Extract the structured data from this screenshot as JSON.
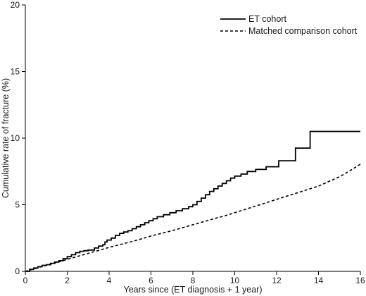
{
  "chart_data": {
    "type": "line",
    "step": true,
    "xlabel": "Years since (ET diagnosis + 1 year)",
    "ylabel": "Cumulative rate of fracture (%)",
    "xlim": [
      0,
      16
    ],
    "ylim": [
      0,
      20
    ],
    "xticks": [
      0,
      2,
      4,
      6,
      8,
      10,
      12,
      14,
      16
    ],
    "yticks": [
      0,
      5,
      10,
      15,
      20
    ],
    "grid": false,
    "legend_position": "top-right",
    "series": [
      {
        "name": "ET cohort",
        "line_style": "solid",
        "color": "#000000",
        "x": [
          0,
          0.2,
          0.4,
          0.6,
          0.8,
          1.0,
          1.2,
          1.4,
          1.6,
          1.8,
          2.0,
          2.2,
          2.4,
          2.6,
          2.8,
          3.0,
          3.3,
          3.5,
          3.7,
          3.8,
          3.9,
          4.1,
          4.3,
          4.5,
          4.7,
          4.9,
          5.1,
          5.3,
          5.5,
          5.7,
          5.9,
          6.1,
          6.3,
          6.6,
          6.9,
          7.2,
          7.5,
          7.8,
          8.0,
          8.2,
          8.4,
          8.6,
          8.8,
          9.0,
          9.2,
          9.4,
          9.6,
          9.8,
          10.0,
          10.3,
          10.6,
          11.0,
          11.5,
          12.1,
          12.9,
          13.6,
          16.0
        ],
        "y": [
          0,
          0.15,
          0.25,
          0.35,
          0.45,
          0.5,
          0.6,
          0.7,
          0.8,
          0.95,
          1.1,
          1.25,
          1.4,
          1.5,
          1.55,
          1.6,
          1.75,
          1.9,
          2.0,
          2.2,
          2.35,
          2.5,
          2.7,
          2.85,
          2.95,
          3.05,
          3.2,
          3.35,
          3.5,
          3.65,
          3.8,
          3.95,
          4.1,
          4.25,
          4.4,
          4.55,
          4.7,
          4.85,
          5.0,
          5.25,
          5.5,
          5.75,
          6.0,
          6.2,
          6.4,
          6.6,
          6.8,
          7.0,
          7.15,
          7.3,
          7.5,
          7.65,
          7.85,
          8.3,
          9.25,
          10.5,
          10.5
        ]
      },
      {
        "name": "Matched comparison cohort",
        "line_style": "dashed",
        "color": "#000000",
        "x": [
          0,
          0.5,
          1,
          1.5,
          2,
          2.5,
          3,
          3.5,
          4,
          4.5,
          5,
          5.5,
          6,
          6.5,
          7,
          7.5,
          8,
          8.5,
          9,
          9.5,
          10,
          10.5,
          11,
          11.5,
          12,
          12.5,
          13,
          13.5,
          14,
          14.5,
          15,
          15.5,
          16
        ],
        "y": [
          0,
          0.22,
          0.45,
          0.67,
          0.9,
          1.12,
          1.35,
          1.57,
          1.8,
          2.0,
          2.2,
          2.42,
          2.65,
          2.85,
          3.05,
          3.27,
          3.5,
          3.72,
          3.95,
          4.15,
          4.4,
          4.65,
          4.9,
          5.15,
          5.4,
          5.65,
          5.9,
          6.15,
          6.4,
          6.75,
          7.1,
          7.55,
          8.05
        ]
      }
    ]
  }
}
